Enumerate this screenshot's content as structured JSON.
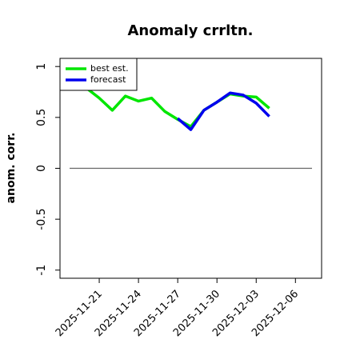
{
  "chart_data": {
    "type": "line",
    "title": "Anomaly crrltn.",
    "ylabel": "anom. corr.",
    "x": [
      "2025-11-20",
      "2025-11-21",
      "2025-11-22",
      "2025-11-23",
      "2025-11-24",
      "2025-11-25",
      "2025-11-26",
      "2025-11-27",
      "2025-11-28",
      "2025-11-29",
      "2025-11-30",
      "2025-12-01",
      "2025-12-02",
      "2025-12-03",
      "2025-12-04"
    ],
    "series": [
      {
        "name": "best est.",
        "color": "#00e600",
        "values": [
          0.79,
          0.69,
          0.57,
          0.71,
          0.66,
          0.69,
          0.56,
          0.48,
          0.41,
          0.57,
          0.65,
          0.73,
          0.71,
          0.7,
          0.59
        ]
      },
      {
        "name": "forecast",
        "color": "#0000ee",
        "values": [
          null,
          null,
          null,
          null,
          null,
          null,
          null,
          0.49,
          0.38,
          0.57,
          0.65,
          0.74,
          0.72,
          0.64,
          0.51
        ]
      }
    ],
    "xlim": [
      "2025-11-18",
      "2025-12-08"
    ],
    "xticks": [
      "2025-11-21",
      "2025-11-24",
      "2025-11-27",
      "2025-11-30",
      "2025-12-03",
      "2025-12-06"
    ],
    "highlight_xtick": "2025-11-27",
    "highlight_color": "#1a8a1a",
    "ylim": [
      -1.08,
      1.08
    ],
    "yticks": [
      -1.0,
      -0.5,
      0.0,
      0.5,
      1.0
    ],
    "hline": 0,
    "hline_color": "#666666",
    "legend": "upper left"
  }
}
